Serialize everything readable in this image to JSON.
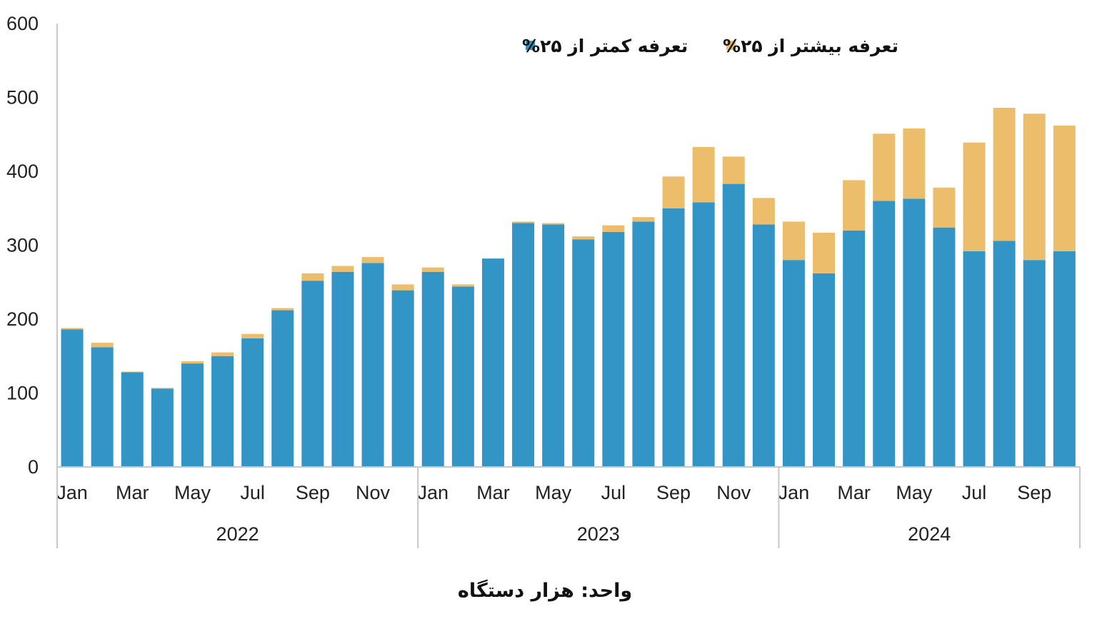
{
  "chart_data": {
    "type": "bar",
    "stacked": true,
    "categories": [
      "Jan",
      "Feb",
      "Mar",
      "Apr",
      "May",
      "Jun",
      "Jul",
      "Aug",
      "Sep",
      "Oct",
      "Nov",
      "Dec",
      "Jan",
      "Feb",
      "Mar",
      "Apr",
      "May",
      "Jun",
      "Jul",
      "Aug",
      "Sep",
      "Oct",
      "Nov",
      "Dec",
      "Jan",
      "Feb",
      "Mar",
      "Apr",
      "May",
      "Jun",
      "Jul",
      "Aug",
      "Sep",
      "Oct"
    ],
    "x_tick_labels": [
      "Jan",
      "Mar",
      "May",
      "Jul",
      "Sep",
      "Nov",
      "Jan",
      "Mar",
      "May",
      "Jul",
      "Sep",
      "Nov",
      "Jan",
      "Mar",
      "May",
      "Jul",
      "Sep"
    ],
    "x_tick_category_index": [
      0,
      2,
      4,
      6,
      8,
      10,
      12,
      14,
      16,
      18,
      20,
      22,
      24,
      26,
      28,
      30,
      32
    ],
    "groups": [
      {
        "label": "2022",
        "start": 0,
        "end": 11
      },
      {
        "label": "2023",
        "start": 12,
        "end": 23
      },
      {
        "label": "2024",
        "start": 24,
        "end": 33
      }
    ],
    "series": [
      {
        "name": "تعرفه کمتر از ۲۵%",
        "color": "#3394c6",
        "values": [
          186,
          162,
          128,
          106,
          140,
          150,
          174,
          212,
          252,
          264,
          276,
          239,
          264,
          244,
          282,
          330,
          328,
          308,
          318,
          332,
          350,
          358,
          383,
          328,
          280,
          262,
          320,
          360,
          363,
          324,
          292,
          306,
          280,
          292
        ]
      },
      {
        "name": "تعرفه بیشتر از ۲۵%",
        "color": "#ecbd6b",
        "values": [
          2,
          6,
          1,
          1,
          3,
          5,
          6,
          3,
          10,
          8,
          8,
          8,
          6,
          3,
          0,
          2,
          2,
          4,
          9,
          6,
          43,
          75,
          37,
          36,
          52,
          55,
          68,
          91,
          95,
          54,
          147,
          180,
          198,
          170
        ]
      }
    ],
    "ylim": [
      0,
      600
    ],
    "yticks": [
      0,
      100,
      200,
      300,
      400,
      500,
      600
    ],
    "legend_position": "top-center",
    "grid": false
  },
  "unit_label": "واحد: هزار دستگاه"
}
